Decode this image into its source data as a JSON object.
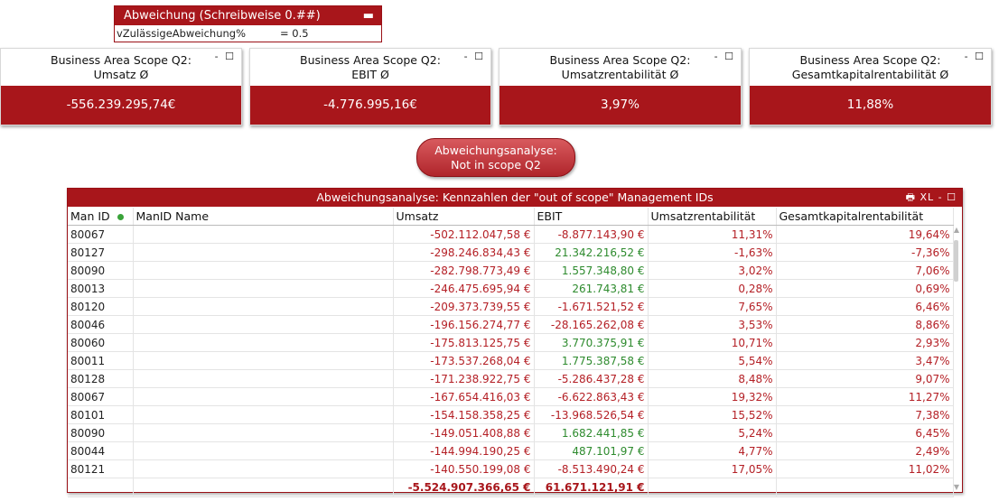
{
  "variable_box": {
    "title": "Abweichung (Schreibweise 0.##)",
    "name": "vZulässigeAbweichung%",
    "value": "= 0.5",
    "min_icon": "minimize-icon"
  },
  "kpis": [
    {
      "title_line1": "Business Area Scope Q2:",
      "title_line2": "Umsatz Ø",
      "value": "-556.239.295,74€"
    },
    {
      "title_line1": "Business Area Scope Q2:",
      "title_line2": "EBIT Ø",
      "value": "-4.776.995,16€"
    },
    {
      "title_line1": "Business Area Scope Q2:",
      "title_line2": "Umsatzrentabilität Ø",
      "value": "3,97%"
    },
    {
      "title_line1": "Business Area Scope Q2:",
      "title_line2": "Gesamtkapitalrentabilität Ø",
      "value": "11,88%"
    }
  ],
  "window_controls": "- ☐",
  "button": {
    "line1": "Abweichungsanalyse:",
    "line2": "Not in scope Q2"
  },
  "table": {
    "title": "Abweichungsanalyse: Kennzahlen der \"out of scope\" Management IDs",
    "controls": "🖶 XL - ☐",
    "columns": [
      "Man ID",
      "ManID Name",
      "Umsatz",
      "EBIT",
      "Umsatzrentabilität",
      "Gesamtkapitalrentabilität"
    ],
    "rows": [
      [
        "80067",
        "",
        "-502.112.047,58 €",
        "-8.877.143,90 €",
        "11,31%",
        "19,64%"
      ],
      [
        "80127",
        "",
        "-298.246.834,43 €",
        "21.342.216,52 €",
        "-1,63%",
        "-7,36%"
      ],
      [
        "80090",
        "",
        "-282.798.773,49 €",
        "1.557.348,80 €",
        "3,02%",
        "7,06%"
      ],
      [
        "80013",
        "",
        "-246.475.695,94 €",
        "261.743,81 €",
        "0,28%",
        "0,69%"
      ],
      [
        "80120",
        "",
        "-209.373.739,55 €",
        "-1.671.521,52 €",
        "7,65%",
        "6,46%"
      ],
      [
        "80046",
        "",
        "-196.156.274,77 €",
        "-28.165.262,08 €",
        "3,53%",
        "8,86%"
      ],
      [
        "80060",
        "",
        "-175.813.125,75 €",
        "3.770.375,91 €",
        "10,71%",
        "2,93%"
      ],
      [
        "80011",
        "",
        "-173.537.268,04 €",
        "1.775.387,58 €",
        "5,54%",
        "3,47%"
      ],
      [
        "80128",
        "",
        "-171.238.922,75 €",
        "-5.286.437,28 €",
        "8,48%",
        "9,07%"
      ],
      [
        "80067",
        "",
        "-167.654.416,03 €",
        "-6.622.863,43 €",
        "19,32%",
        "11,27%"
      ],
      [
        "80101",
        "",
        "-154.158.358,25 €",
        "-13.968.526,54 €",
        "15,52%",
        "7,38%"
      ],
      [
        "80090",
        "",
        "-149.051.408,88 €",
        "1.682.441,85 €",
        "5,24%",
        "6,45%"
      ],
      [
        "80044",
        "",
        "-144.994.190,25 €",
        "487.101,97 €",
        "4,77%",
        "2,49%"
      ],
      [
        "80121",
        "",
        "-140.550.199,08 €",
        "-8.513.490,24 €",
        "17,05%",
        "11,02%"
      ]
    ],
    "totals": [
      "",
      "",
      "-5.524.907.366,65 €",
      "61.671.121,91 €",
      "",
      ""
    ]
  }
}
